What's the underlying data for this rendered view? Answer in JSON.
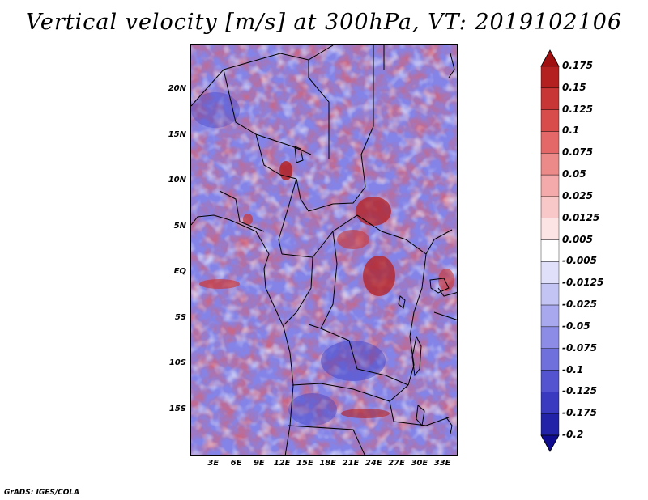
{
  "title": "Vertical velocity [m/s] at 300hPa, VT: 2019102106",
  "credit": "GrADS: IGES/COLA",
  "map": {
    "variable": "Vertical velocity",
    "units": "m/s",
    "level": "300hPa",
    "valid_time": "2019102106",
    "lat_range": [
      -20,
      25
    ],
    "lon_range": [
      0,
      35
    ]
  },
  "lat_labels": [
    "20N",
    "15N",
    "10N",
    "5N",
    "EQ",
    "5S",
    "10S",
    "15S"
  ],
  "lat_values": [
    20,
    15,
    10,
    5,
    0,
    -5,
    -10,
    -15
  ],
  "lon_labels": [
    "3E",
    "6E",
    "9E",
    "12E",
    "15E",
    "18E",
    "21E",
    "24E",
    "27E",
    "30E",
    "33E"
  ],
  "lon_values": [
    3,
    6,
    9,
    12,
    15,
    18,
    21,
    24,
    27,
    30,
    33
  ],
  "colorbar": {
    "labels": [
      "0.175",
      "0.15",
      "0.125",
      "0.1",
      "0.075",
      "0.05",
      "0.025",
      "0.0125",
      "0.005",
      "-0.005",
      "-0.0125",
      "-0.025",
      "-0.05",
      "-0.075",
      "-0.1",
      "-0.125",
      "-0.175",
      "-0.2"
    ],
    "colors": [
      "#a01010",
      "#b42020",
      "#c83636",
      "#d84c4c",
      "#e46868",
      "#ec8a8a",
      "#f4aaaa",
      "#f8c8c8",
      "#fce4e4",
      "#ffffff",
      "#e0e0fa",
      "#c4c4f4",
      "#a8a8ee",
      "#8c8ce6",
      "#7070dc",
      "#5454d0",
      "#3a3ac0",
      "#2222a8",
      "#100c90"
    ]
  }
}
